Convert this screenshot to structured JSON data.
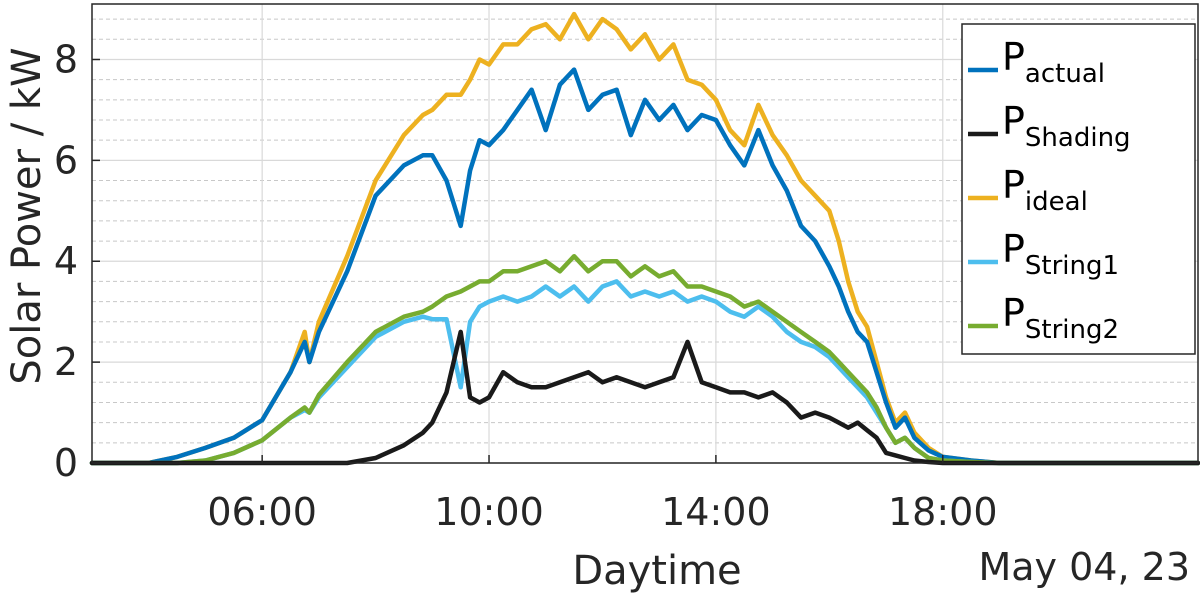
{
  "chart_data": {
    "type": "line",
    "title": "",
    "xlabel": "Daytime",
    "ylabel": "Solar Power / kW",
    "date_label": "May 04, 23",
    "xlim": [
      "03:00",
      "22:30"
    ],
    "ylim": [
      0,
      9.1
    ],
    "x_ticks": [
      "06:00",
      "10:00",
      "14:00",
      "18:00"
    ],
    "y_ticks": [
      "0",
      "2",
      "4",
      "6",
      "8"
    ],
    "grid": true,
    "minor_grid": true,
    "legend_position": "top-right",
    "x": [
      "03:00",
      "04:00",
      "04:30",
      "05:00",
      "05:30",
      "06:00",
      "06:30",
      "06:45",
      "06:50",
      "07:00",
      "07:30",
      "08:00",
      "08:30",
      "08:50",
      "09:00",
      "09:15",
      "09:30",
      "09:40",
      "09:50",
      "10:00",
      "10:15",
      "10:30",
      "10:45",
      "11:00",
      "11:15",
      "11:30",
      "11:45",
      "12:00",
      "12:15",
      "12:30",
      "12:45",
      "13:00",
      "13:15",
      "13:30",
      "13:45",
      "14:00",
      "14:15",
      "14:30",
      "14:45",
      "15:00",
      "15:15",
      "15:30",
      "15:45",
      "16:00",
      "16:10",
      "16:20",
      "16:30",
      "16:40",
      "16:50",
      "17:00",
      "17:10",
      "17:20",
      "17:30",
      "17:45",
      "18:00",
      "18:30",
      "19:00",
      "20:00",
      "22:30"
    ],
    "series": [
      {
        "name": "actual",
        "color": "#0072BD",
        "values": [
          0,
          0,
          0.12,
          0.3,
          0.5,
          0.85,
          1.8,
          2.4,
          2.0,
          2.6,
          3.8,
          5.3,
          5.9,
          6.1,
          6.1,
          5.6,
          4.7,
          5.8,
          6.4,
          6.3,
          6.6,
          7.0,
          7.4,
          6.6,
          7.5,
          7.8,
          7.0,
          7.3,
          7.4,
          6.5,
          7.2,
          6.8,
          7.1,
          6.6,
          6.9,
          6.8,
          6.3,
          5.9,
          6.6,
          5.9,
          5.4,
          4.7,
          4.4,
          3.9,
          3.5,
          3.0,
          2.6,
          2.4,
          1.8,
          1.2,
          0.7,
          0.9,
          0.5,
          0.25,
          0.12,
          0.05,
          0,
          0,
          0
        ]
      },
      {
        "name": "Shading",
        "color": "#1a1a1a",
        "values": [
          0,
          0,
          0,
          0,
          0,
          0,
          0,
          0,
          0,
          0,
          0,
          0.1,
          0.35,
          0.6,
          0.8,
          1.4,
          2.6,
          1.3,
          1.2,
          1.3,
          1.8,
          1.6,
          1.5,
          1.5,
          1.6,
          1.7,
          1.8,
          1.6,
          1.7,
          1.6,
          1.5,
          1.6,
          1.7,
          2.4,
          1.6,
          1.5,
          1.4,
          1.4,
          1.3,
          1.4,
          1.2,
          0.9,
          1.0,
          0.9,
          0.8,
          0.7,
          0.8,
          0.65,
          0.5,
          0.2,
          0.15,
          0.1,
          0.05,
          0.02,
          0,
          0,
          0,
          0,
          0
        ]
      },
      {
        "name": "ideal",
        "color": "#EDB120",
        "values": [
          0,
          0,
          0.12,
          0.3,
          0.5,
          0.85,
          1.8,
          2.6,
          2.0,
          2.8,
          4.1,
          5.6,
          6.5,
          6.9,
          7.0,
          7.3,
          7.3,
          7.6,
          8.0,
          7.9,
          8.3,
          8.3,
          8.6,
          8.7,
          8.4,
          8.9,
          8.4,
          8.8,
          8.6,
          8.2,
          8.5,
          8.0,
          8.3,
          7.6,
          7.5,
          7.2,
          6.6,
          6.3,
          7.1,
          6.5,
          6.1,
          5.6,
          5.3,
          5.0,
          4.4,
          3.6,
          3.0,
          2.7,
          2.0,
          1.3,
          0.8,
          1.0,
          0.6,
          0.3,
          0.12,
          0.05,
          0,
          0,
          0
        ]
      },
      {
        "name": "String1",
        "color": "#4DBEEE",
        "values": [
          0,
          0,
          0,
          0.05,
          0.2,
          0.45,
          0.9,
          1.05,
          1.0,
          1.3,
          1.9,
          2.5,
          2.8,
          2.9,
          2.85,
          2.85,
          1.5,
          2.8,
          3.1,
          3.2,
          3.3,
          3.2,
          3.3,
          3.5,
          3.3,
          3.5,
          3.2,
          3.5,
          3.6,
          3.3,
          3.4,
          3.3,
          3.4,
          3.2,
          3.3,
          3.2,
          3.0,
          2.9,
          3.1,
          2.9,
          2.6,
          2.4,
          2.3,
          2.1,
          1.9,
          1.7,
          1.5,
          1.3,
          1.0,
          0.7,
          0.4,
          0.5,
          0.3,
          0.1,
          0.05,
          0.02,
          0,
          0,
          0
        ]
      },
      {
        "name": "String2",
        "color": "#77AC30",
        "values": [
          0,
          0,
          0,
          0.05,
          0.2,
          0.45,
          0.9,
          1.1,
          1.0,
          1.35,
          2.0,
          2.6,
          2.9,
          3.0,
          3.1,
          3.3,
          3.4,
          3.5,
          3.6,
          3.6,
          3.8,
          3.8,
          3.9,
          4.0,
          3.8,
          4.1,
          3.8,
          4.0,
          4.0,
          3.7,
          3.9,
          3.7,
          3.8,
          3.5,
          3.5,
          3.4,
          3.3,
          3.1,
          3.2,
          3.0,
          2.8,
          2.6,
          2.4,
          2.2,
          2.0,
          1.8,
          1.6,
          1.4,
          1.1,
          0.7,
          0.4,
          0.5,
          0.3,
          0.1,
          0.05,
          0.02,
          0,
          0,
          0
        ]
      }
    ]
  }
}
